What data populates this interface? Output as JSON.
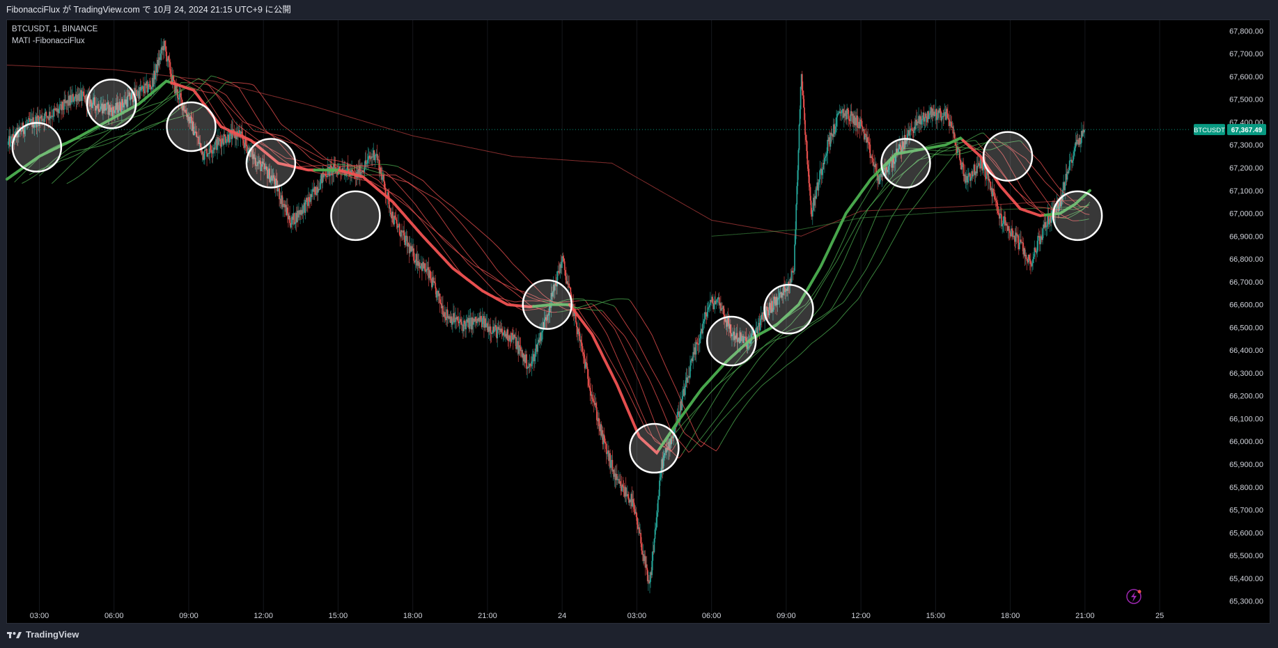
{
  "header": {
    "publish_text": "FibonacciFlux が TradingView.com で 10月 24, 2024 21:15 UTC+9 に公開"
  },
  "legend": {
    "symbol_line": "BTCUSDT, 1, BINANCE",
    "indicator_line": "MATI -FibonacciFlux"
  },
  "footer": {
    "brand": "TradingView"
  },
  "price_tag": {
    "symbol": "BTCUSDT",
    "value": "67,367.49"
  },
  "colors": {
    "background": "#000000",
    "bull": "#4caf50",
    "bear": "#f05252",
    "candle_up": "#26a69a",
    "candle_down": "#ef5350",
    "price_tag": "#089981",
    "axis_text": "#d1d4dc"
  },
  "chart_data": {
    "type": "line",
    "symbol": "BTCUSDT",
    "interval": "1",
    "exchange": "BINANCE",
    "indicator": "MATI -FibonacciFlux",
    "y_axis": {
      "ticks": [
        "65,300.00",
        "65,400.00",
        "65,500.00",
        "65,600.00",
        "65,700.00",
        "65,800.00",
        "65,900.00",
        "66,000.00",
        "66,100.00",
        "66,200.00",
        "66,300.00",
        "66,400.00",
        "66,500.00",
        "66,600.00",
        "66,700.00",
        "66,800.00",
        "66,900.00",
        "67,000.00",
        "67,100.00",
        "67,200.00",
        "67,300.00",
        "67,400.00",
        "67,500.00",
        "67,600.00",
        "67,700.00",
        "67,800.00"
      ],
      "ylim": [
        65250,
        67850
      ],
      "side": "right"
    },
    "x_axis": {
      "ticks": [
        "03:00",
        "06:00",
        "09:00",
        "12:00",
        "15:00",
        "18:00",
        "21:00",
        "24",
        "03:00",
        "06:00",
        "09:00",
        "12:00",
        "15:00",
        "18:00",
        "21:00",
        "25"
      ],
      "tick_hours": [
        3,
        6,
        9,
        12,
        15,
        18,
        21,
        24,
        27,
        30,
        33,
        36,
        39,
        42,
        45,
        48
      ],
      "xlim": [
        1.7,
        49.2
      ]
    },
    "last_price": 67367.49,
    "price_path": {
      "x_hours": [
        1.7,
        2.4,
        3.1,
        3.8,
        4.5,
        5.2,
        6.0,
        6.8,
        7.5,
        8.0,
        8.4,
        9.0,
        9.6,
        10.4,
        11.0,
        11.7,
        12.4,
        13.1,
        13.8,
        14.5,
        15.2,
        15.7,
        16.5,
        17.2,
        18.0,
        18.6,
        19.3,
        20.0,
        20.7,
        21.4,
        22.0,
        22.7,
        23.4,
        24.0,
        24.5,
        25.0,
        25.6,
        26.2,
        26.8,
        27.2,
        27.5,
        28.0,
        28.5,
        29.2,
        29.9,
        30.3,
        30.8,
        31.5,
        32.2,
        32.8,
        33.3,
        33.6,
        34.0,
        34.6,
        35.2,
        36.0,
        36.7,
        37.4,
        38.1,
        38.8,
        39.5,
        40.2,
        40.9,
        41.6,
        42.3,
        42.8,
        43.4,
        44.0,
        44.6,
        45.0
      ],
      "close": [
        67300,
        67380,
        67420,
        67450,
        67520,
        67480,
        67450,
        67520,
        67560,
        67740,
        67560,
        67420,
        67260,
        67330,
        67350,
        67230,
        67150,
        66960,
        67050,
        67180,
        67200,
        67160,
        67270,
        66980,
        66820,
        66740,
        66560,
        66510,
        66530,
        66480,
        66460,
        66320,
        66560,
        66800,
        66550,
        66300,
        66020,
        65820,
        65740,
        65540,
        65350,
        65900,
        66050,
        66340,
        66600,
        66620,
        66470,
        66430,
        66570,
        66640,
        66740,
        67620,
        67000,
        67280,
        67450,
        67390,
        67150,
        67250,
        67380,
        67440,
        67430,
        67150,
        67220,
        66980,
        66880,
        66780,
        66950,
        67050,
        67300,
        67367.49
      ]
    },
    "series": [
      {
        "name": "MATI -FibonacciFlux",
        "x_hours": [
          1.7,
          3.0,
          4.5,
          6.0,
          7.0,
          8.1,
          9.2,
          10.3,
          11.5,
          12.6,
          13.8,
          15.0,
          16.0,
          17.2,
          18.4,
          19.6,
          20.8,
          21.8,
          22.7,
          23.6,
          24.3,
          25.2,
          26.2,
          27.1,
          27.8,
          28.6,
          29.6,
          30.6,
          31.6,
          32.6,
          33.5,
          34.4,
          35.4,
          36.4,
          37.4,
          38.4,
          39.4,
          40.0,
          40.8,
          41.6,
          42.4,
          43.2,
          44.0,
          44.6,
          45.2
        ],
        "values": [
          67150,
          67250,
          67330,
          67420,
          67480,
          67580,
          67540,
          67380,
          67320,
          67220,
          67190,
          67190,
          67160,
          67050,
          66900,
          66760,
          66660,
          66600,
          66590,
          66600,
          66600,
          66470,
          66250,
          66020,
          65950,
          66080,
          66230,
          66350,
          66450,
          66510,
          66600,
          66770,
          67000,
          67150,
          67260,
          67280,
          67300,
          67330,
          67250,
          67120,
          67020,
          66990,
          67000,
          67040,
          67100
        ]
      }
    ],
    "trend_markers": [
      {
        "x_hour": 2.9,
        "price": 67290
      },
      {
        "x_hour": 5.9,
        "price": 67480
      },
      {
        "x_hour": 9.1,
        "price": 67380
      },
      {
        "x_hour": 12.3,
        "price": 67220
      },
      {
        "x_hour": 15.7,
        "price": 66990
      },
      {
        "x_hour": 23.4,
        "price": 66600
      },
      {
        "x_hour": 27.7,
        "price": 65970
      },
      {
        "x_hour": 30.8,
        "price": 66440
      },
      {
        "x_hour": 33.1,
        "price": 66580
      },
      {
        "x_hour": 37.8,
        "price": 67220
      },
      {
        "x_hour": 41.9,
        "price": 67250
      },
      {
        "x_hour": 44.7,
        "price": 66990
      }
    ]
  }
}
